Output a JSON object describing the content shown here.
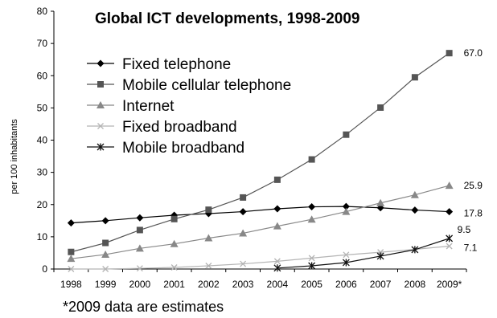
{
  "chart_data": {
    "type": "line",
    "title": "Global ICT developments, 1998-2009",
    "xlabel": "",
    "ylabel": "per 100 inhabitants",
    "ylim": [
      0,
      80
    ],
    "yticks": [
      0,
      10,
      20,
      30,
      40,
      50,
      60,
      70,
      80
    ],
    "categories": [
      "1998",
      "1999",
      "2000",
      "2001",
      "2002",
      "2003",
      "2004",
      "2005",
      "2006",
      "2007",
      "2008",
      "2009*"
    ],
    "grid": false,
    "legend_position": "top-left",
    "footnote": "*2009 data are estimates",
    "series": [
      {
        "name": "Fixed telephone",
        "marker": "diamond",
        "color": "#000000",
        "end_label": "17.8",
        "values": [
          14.3,
          15.0,
          15.9,
          16.7,
          17.2,
          17.8,
          18.7,
          19.3,
          19.4,
          19.0,
          18.3,
          17.8
        ]
      },
      {
        "name": "Mobile cellular telephone",
        "marker": "square",
        "color": "#555555",
        "end_label": "67.0",
        "values": [
          5.3,
          8.1,
          12.1,
          15.5,
          18.4,
          22.2,
          27.7,
          34.0,
          41.7,
          50.1,
          59.5,
          67.0
        ]
      },
      {
        "name": "Internet",
        "marker": "triangle",
        "color": "#888888",
        "end_label": "25.9",
        "values": [
          3.2,
          4.5,
          6.4,
          7.8,
          9.6,
          11.1,
          13.3,
          15.4,
          17.8,
          20.5,
          23.0,
          25.9
        ]
      },
      {
        "name": "Fixed broadband",
        "marker": "x",
        "color": "#b4b4b4",
        "end_label": "7.1",
        "values": [
          0.0,
          0.0,
          0.2,
          0.5,
          1.0,
          1.6,
          2.4,
          3.4,
          4.4,
          5.2,
          6.1,
          7.1
        ]
      },
      {
        "name": "Mobile broadband",
        "marker": "star",
        "color": "#111111",
        "end_label": "9.5",
        "values": [
          null,
          null,
          null,
          null,
          null,
          null,
          0.3,
          1.0,
          2.0,
          4.0,
          6.0,
          9.5
        ]
      }
    ]
  }
}
